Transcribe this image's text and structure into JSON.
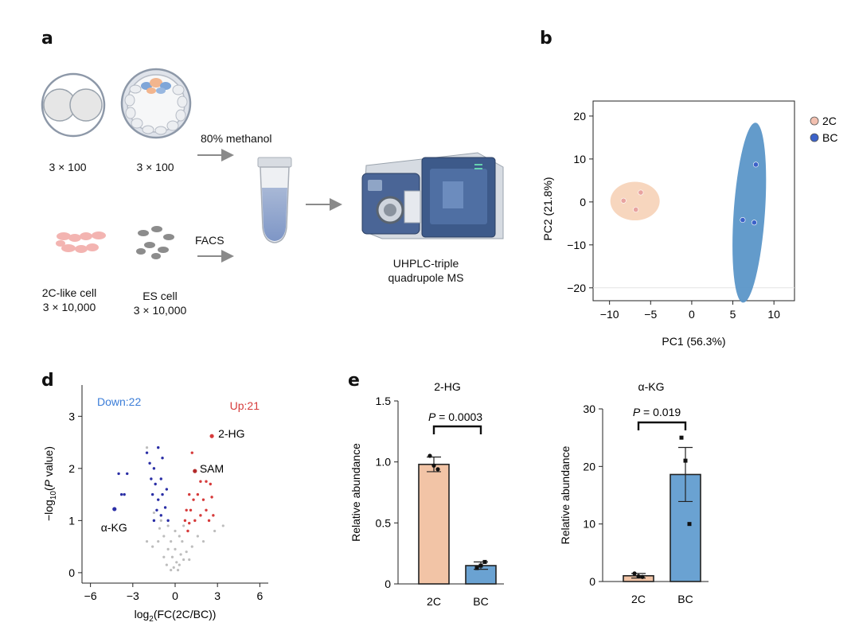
{
  "panels": {
    "a": "a",
    "b": "b",
    "d": "d",
    "e": "e"
  },
  "panel_a": {
    "two_cell_embryo_count": "3 × 100",
    "blastocyst_count": "3 × 100",
    "methanol_label": "80% methanol",
    "facs_label": "FACS",
    "two_c_like_label": "2C-like cell",
    "two_c_like_count": "3 × 10,000",
    "es_cell_label": "ES cell",
    "es_cell_count": "3 × 10,000",
    "instrument_line1": "UHPLC-triple",
    "instrument_line2": "quadrupole MS"
  },
  "chart_data": [
    {
      "id": "b",
      "type": "scatter",
      "xlabel": "PC1 (56.3%)",
      "ylabel": "PC2 (21.8%)",
      "xlim": [
        -12,
        12.5
      ],
      "ylim": [
        -23,
        23.5
      ],
      "xticks": [
        -10,
        -5,
        0,
        5,
        10
      ],
      "yticks": [
        -20,
        -10,
        0,
        10,
        20
      ],
      "series": [
        {
          "name": "2C",
          "color": "#f4c8a8",
          "point_color": "#e8a3a0",
          "points": [
            [
              -8.3,
              0.3
            ],
            [
              -6.2,
              2.2
            ],
            [
              -6.8,
              -1.8
            ]
          ],
          "ellipse": {
            "cx": -6.9,
            "cy": 0.2,
            "rx": 3.0,
            "ry": 4.5
          }
        },
        {
          "name": "BC",
          "color": "#5b96c8",
          "point_color": "#3c62c9",
          "points": [
            [
              7.8,
              8.7
            ],
            [
              6.2,
              -4.2
            ],
            [
              7.6,
              -4.8
            ]
          ],
          "ellipse": {
            "cx": 7.0,
            "cy": -2.5,
            "rx": 1.9,
            "ry": 21
          }
        }
      ]
    },
    {
      "id": "d",
      "type": "scatter",
      "title_left": "Down:22",
      "title_right": "Up:21",
      "xlabel_prefix": "log",
      "xlabel_sub": "2",
      "xlabel_suffix": "(FC(2C/BC))",
      "ylabel_prefix": "−log",
      "ylabel_sub": "10",
      "ylabel_p": "P",
      "ylabel_suffix": " value)",
      "xlim": [
        -6.6,
        6.6
      ],
      "ylim": [
        -0.2,
        3.6
      ],
      "xticks": [
        -6,
        -3,
        0,
        3,
        6
      ],
      "yticks": [
        0,
        1,
        2,
        3
      ],
      "annotations": [
        {
          "label": "2-HG",
          "x": 2.6,
          "y": 2.62
        },
        {
          "label": "SAM",
          "x": 1.4,
          "y": 1.95
        },
        {
          "label": "α-KG",
          "x": -4.3,
          "y": 1.22
        }
      ],
      "down_points": [
        [
          -4.3,
          1.22
        ],
        [
          -3.8,
          1.5
        ],
        [
          -3.6,
          1.5
        ],
        [
          -3.4,
          1.9
        ],
        [
          -4.0,
          1.9
        ],
        [
          -2.0,
          2.3
        ],
        [
          -1.8,
          2.1
        ],
        [
          -1.5,
          2.0
        ],
        [
          -1.2,
          2.4
        ],
        [
          -0.9,
          2.2
        ],
        [
          -1.7,
          1.8
        ],
        [
          -1.4,
          1.7
        ],
        [
          -1.0,
          1.8
        ],
        [
          -1.6,
          1.5
        ],
        [
          -1.2,
          1.4
        ],
        [
          -0.9,
          1.5
        ],
        [
          -0.6,
          1.6
        ],
        [
          -1.3,
          1.2
        ],
        [
          -1.0,
          1.1
        ],
        [
          -0.7,
          1.25
        ],
        [
          -0.5,
          1.0
        ],
        [
          -1.5,
          1.0
        ]
      ],
      "up_points": [
        [
          2.6,
          2.62
        ],
        [
          1.4,
          1.95
        ],
        [
          1.2,
          2.3
        ],
        [
          1.8,
          1.75
        ],
        [
          2.2,
          1.75
        ],
        [
          2.5,
          1.7
        ],
        [
          1.0,
          1.5
        ],
        [
          1.3,
          1.4
        ],
        [
          1.6,
          1.5
        ],
        [
          2.0,
          1.4
        ],
        [
          2.6,
          1.45
        ],
        [
          0.8,
          1.2
        ],
        [
          1.1,
          1.2
        ],
        [
          1.4,
          1.0
        ],
        [
          1.8,
          1.1
        ],
        [
          2.2,
          1.2
        ],
        [
          2.7,
          1.1
        ],
        [
          0.7,
          1.0
        ],
        [
          1.0,
          0.95
        ],
        [
          2.4,
          1.0
        ],
        [
          0.9,
          0.8
        ]
      ],
      "ns_points": [
        [
          -2.0,
          2.4
        ],
        [
          -1.5,
          1.15
        ],
        [
          -1.0,
          1.0
        ],
        [
          -0.8,
          0.7
        ],
        [
          -0.5,
          0.9
        ],
        [
          -0.3,
          0.6
        ],
        [
          0.0,
          0.8
        ],
        [
          0.3,
          0.7
        ],
        [
          0.6,
          0.9
        ],
        [
          0.5,
          0.6
        ],
        [
          -0.2,
          0.3
        ],
        [
          0.1,
          0.2
        ],
        [
          0.2,
          0.05
        ],
        [
          -0.1,
          0.1
        ],
        [
          0.4,
          0.35
        ],
        [
          -0.5,
          0.45
        ],
        [
          -0.8,
          0.3
        ],
        [
          0.8,
          0.4
        ],
        [
          1.2,
          0.5
        ],
        [
          -1.2,
          0.6
        ],
        [
          -1.6,
          0.5
        ],
        [
          -2.0,
          0.6
        ],
        [
          1.6,
          0.7
        ],
        [
          2.0,
          0.6
        ],
        [
          3.4,
          0.9
        ],
        [
          2.8,
          0.8
        ],
        [
          -0.6,
          0.15
        ],
        [
          0.0,
          0.45
        ],
        [
          0.3,
          0.15
        ],
        [
          -0.3,
          0.05
        ],
        [
          0.6,
          0.25
        ],
        [
          -1.1,
          0.85
        ],
        [
          1.0,
          0.25
        ]
      ],
      "colors": {
        "down": "#2b2fa6",
        "up": "#d63b3b",
        "ns": "#bdbdbd",
        "left_title": "#3b7dd8",
        "right_title": "#d63b3b"
      }
    },
    {
      "id": "e-left",
      "type": "bar",
      "title": "2-HG",
      "ylabel": "Relative abundance",
      "categories": [
        "2C",
        "BC"
      ],
      "values": [
        0.98,
        0.15
      ],
      "errors": [
        0.06,
        0.03
      ],
      "points": [
        [
          1.05,
          0.97,
          0.94
        ],
        [
          0.13,
          0.15,
          0.18
        ]
      ],
      "ylim": [
        0,
        1.5
      ],
      "yticks": [
        0,
        0.5,
        1.0,
        1.5
      ],
      "ytick_labels": [
        "0",
        "0.5",
        "1.0",
        "1.5"
      ],
      "p_prefix": "P",
      "p_value": " = 0.0003",
      "colors": [
        "#f2c4a6",
        "#6aa2d2"
      ]
    },
    {
      "id": "e-right",
      "type": "bar",
      "title": "α-KG",
      "ylabel": "Relative abundance",
      "categories": [
        "2C",
        "BC"
      ],
      "values": [
        1.0,
        18.6
      ],
      "errors": [
        0.4,
        4.7
      ],
      "points": [
        [
          1.4,
          0.9,
          0.8
        ],
        [
          25,
          21,
          10
        ]
      ],
      "ylim": [
        0,
        30
      ],
      "yticks": [
        0,
        10,
        20,
        30
      ],
      "ytick_labels": [
        "0",
        "10",
        "20",
        "30"
      ],
      "p_prefix": "P",
      "p_value": " = 0.019",
      "colors": [
        "#f2c4a6",
        "#6aa2d2"
      ]
    }
  ]
}
